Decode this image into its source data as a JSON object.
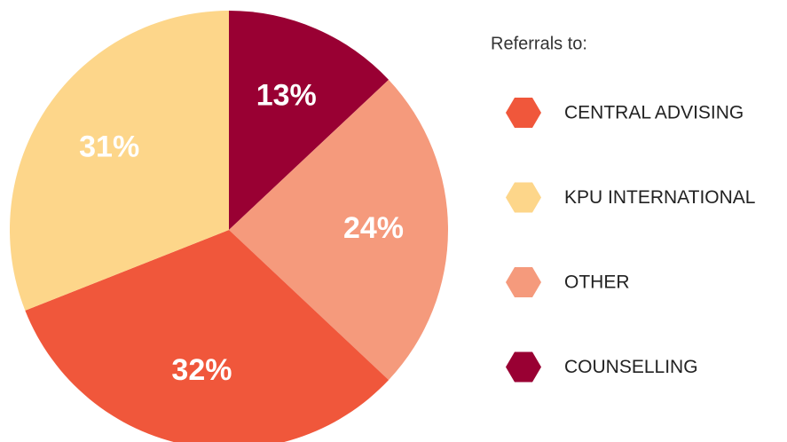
{
  "chart_data": {
    "type": "pie",
    "legend_title": "Referrals to:",
    "categories": [
      "CENTRAL ADVISING",
      "KPU INTERNATIONAL",
      "OTHER",
      "COUNSELLING"
    ],
    "values": [
      32,
      31,
      24,
      13
    ],
    "value_labels": [
      "32%",
      "31%",
      "24%",
      "13%"
    ],
    "colors": [
      "#f0573b",
      "#fdd68a",
      "#f59a7c",
      "#990033"
    ],
    "legend": "right"
  }
}
